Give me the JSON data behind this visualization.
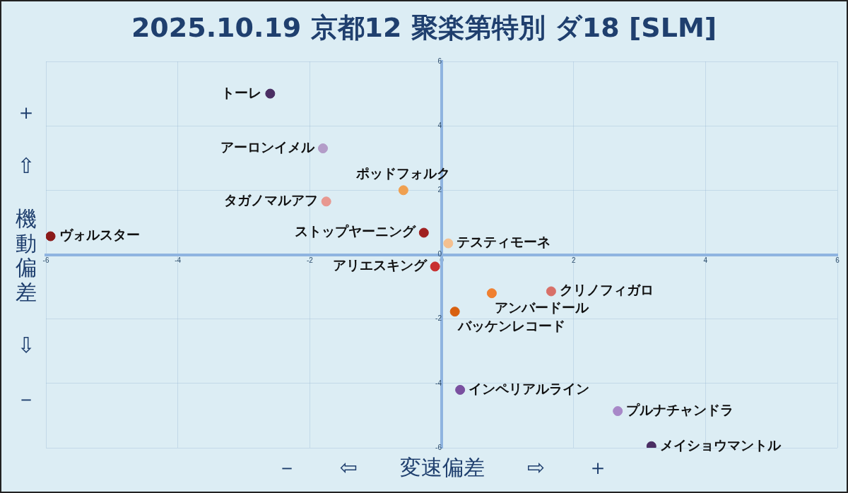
{
  "chart_data": {
    "type": "scatter",
    "title": "2025.10.19 京都12 聚楽第特別 ダ18 [SLM]",
    "xlabel": "－ ⇦ 変速偏差 ⇨ ＋",
    "ylabel": "＋ ⇧ 機動偏差 ⇩ －",
    "xlim": [
      -6,
      6
    ],
    "ylim": [
      -6,
      6
    ],
    "xticks": [
      -6,
      -4,
      -2,
      0,
      2,
      4,
      6
    ],
    "yticks": [
      -6,
      -4,
      -2,
      0,
      2,
      4,
      6
    ],
    "grid": true,
    "legend": false,
    "marker": "circle",
    "series": [
      {
        "name": "トーレ",
        "color": "#4a2e63",
        "x": [
          -2.6
        ],
        "values": [
          5.0
        ]
      },
      {
        "name": "アーロンイメル",
        "color": "#b39cc8",
        "x": [
          -1.8
        ],
        "values": [
          3.3
        ]
      },
      {
        "name": "ポッドフォルク",
        "color": "#f0a050",
        "x": [
          -0.58
        ],
        "values": [
          2.0
        ]
      },
      {
        "name": "タガノマルアフ",
        "color": "#e89890",
        "x": [
          -1.75
        ],
        "values": [
          1.65
        ]
      },
      {
        "name": "ヴォルスター",
        "color": "#8b1a1a",
        "x": [
          -5.93
        ],
        "values": [
          0.57
        ]
      },
      {
        "name": "ストップヤーニング",
        "color": "#a02020",
        "x": [
          -0.27
        ],
        "values": [
          0.68
        ]
      },
      {
        "name": "テスティモーネ",
        "color": "#f5c090",
        "x": [
          0.1
        ],
        "values": [
          0.35
        ]
      },
      {
        "name": "アリエスキング",
        "color": "#c83030",
        "x": [
          -0.1
        ],
        "values": [
          -0.37
        ]
      },
      {
        "name": "クリノフィガロ",
        "color": "#d87068",
        "x": [
          1.66
        ],
        "values": [
          -1.14
        ]
      },
      {
        "name": "アンバードール",
        "color": "#f08030",
        "x": [
          0.76
        ],
        "values": [
          -1.2
        ]
      },
      {
        "name": "バッケンレコード",
        "color": "#d86010",
        "x": [
          0.2
        ],
        "values": [
          -1.77
        ]
      },
      {
        "name": "インペリアルライン",
        "color": "#7a50a0",
        "x": [
          0.28
        ],
        "values": [
          -4.2
        ]
      },
      {
        "name": "プルナチャンドラ",
        "color": "#a888c8",
        "x": [
          2.67
        ],
        "values": [
          -4.86
        ]
      },
      {
        "name": "メイショウマントル",
        "color": "#4a2e63",
        "x": [
          3.18
        ],
        "values": [
          -5.95
        ]
      }
    ]
  }
}
